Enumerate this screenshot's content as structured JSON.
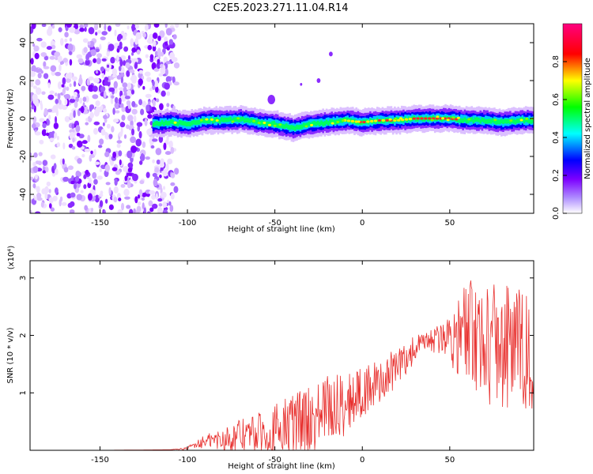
{
  "title": "C2E5.2023.271.11.04.R14",
  "chart_data": [
    {
      "type": "heatmap",
      "xlabel": "Height of straight line (km)",
      "ylabel": "Frequency (Hz)",
      "xlim": [
        -190,
        98
      ],
      "ylim": [
        -50,
        50
      ],
      "xticks": [
        -150,
        -100,
        -50,
        0,
        50
      ],
      "yticks": [
        -40,
        -20,
        0,
        20,
        40
      ],
      "colorbar": {
        "label": "Normalized spectral amplitude",
        "range": [
          0,
          1
        ],
        "ticks": [
          "0.0",
          "0.2",
          "0.4",
          "0.6",
          "0.8"
        ],
        "colors": [
          "#ffffff",
          "#7c00ff",
          "#0000ff",
          "#00ffff",
          "#00ff00",
          "#ffff00",
          "#ff0000",
          "#ff0080"
        ]
      },
      "noise_region": {
        "x_range": [
          -190,
          -110
        ],
        "freq_range": [
          -50,
          50
        ]
      },
      "signal_trace": {
        "x": [
          -120,
          -110,
          -100,
          -90,
          -80,
          -70,
          -60,
          -50,
          -40,
          -30,
          -20,
          -10,
          0,
          10,
          20,
          30,
          40,
          50,
          60,
          70,
          80,
          90,
          98
        ],
        "freq": [
          -3,
          -2,
          -3,
          -1,
          -1,
          -0.5,
          -2,
          -3,
          -5,
          -3,
          -2,
          -1,
          -2,
          -1,
          -1,
          0,
          0,
          0,
          -1,
          -1,
          -2,
          -1,
          -1
        ]
      }
    },
    {
      "type": "line",
      "xlabel": "Height of straight line (km)",
      "ylabel": "SNR (10 * v/v)",
      "y_multiplier": "(x10⁴)",
      "xlim": [
        -190,
        98
      ],
      "ylim": [
        0,
        3.3
      ],
      "xticks": [
        -150,
        -100,
        -50,
        0,
        50
      ],
      "yticks": [
        1,
        2,
        3
      ],
      "series": [
        {
          "color": "#e8302e",
          "x": [
            -190,
            -150,
            -110,
            -100,
            -95,
            -90,
            -80,
            -70,
            -60,
            -50,
            -45,
            -40,
            -35,
            -30,
            -25,
            -20,
            -15,
            -10,
            -5,
            0,
            5,
            10,
            15,
            20,
            25,
            30,
            35,
            40,
            45,
            50,
            55,
            60,
            65,
            70,
            75,
            80,
            85,
            90,
            95,
            98
          ],
          "values": [
            0.0,
            0.0,
            0.01,
            0.03,
            0.12,
            0.15,
            0.2,
            0.25,
            0.3,
            0.35,
            0.4,
            0.45,
            0.55,
            0.5,
            0.6,
            0.7,
            0.75,
            0.8,
            0.95,
            1.0,
            1.1,
            1.2,
            1.3,
            1.45,
            1.6,
            1.75,
            1.85,
            1.9,
            1.95,
            2.0,
            2.0,
            2.05,
            2.0,
            1.95,
            1.9,
            1.85,
            1.8,
            1.75,
            1.7,
            1.7
          ],
          "noise_amplitude": [
            0.0,
            0.0,
            0.0,
            0.02,
            0.08,
            0.12,
            0.2,
            0.3,
            0.35,
            0.45,
            0.5,
            0.6,
            0.6,
            0.6,
            0.6,
            0.65,
            0.6,
            0.55,
            0.5,
            0.45,
            0.4,
            0.4,
            0.4,
            0.35,
            0.3,
            0.25,
            0.2,
            0.2,
            0.3,
            0.5,
            0.7,
            0.9,
            1.0,
            1.1,
            1.2,
            1.2,
            1.1,
            1.1,
            1.0,
            1.0
          ]
        }
      ]
    }
  ]
}
